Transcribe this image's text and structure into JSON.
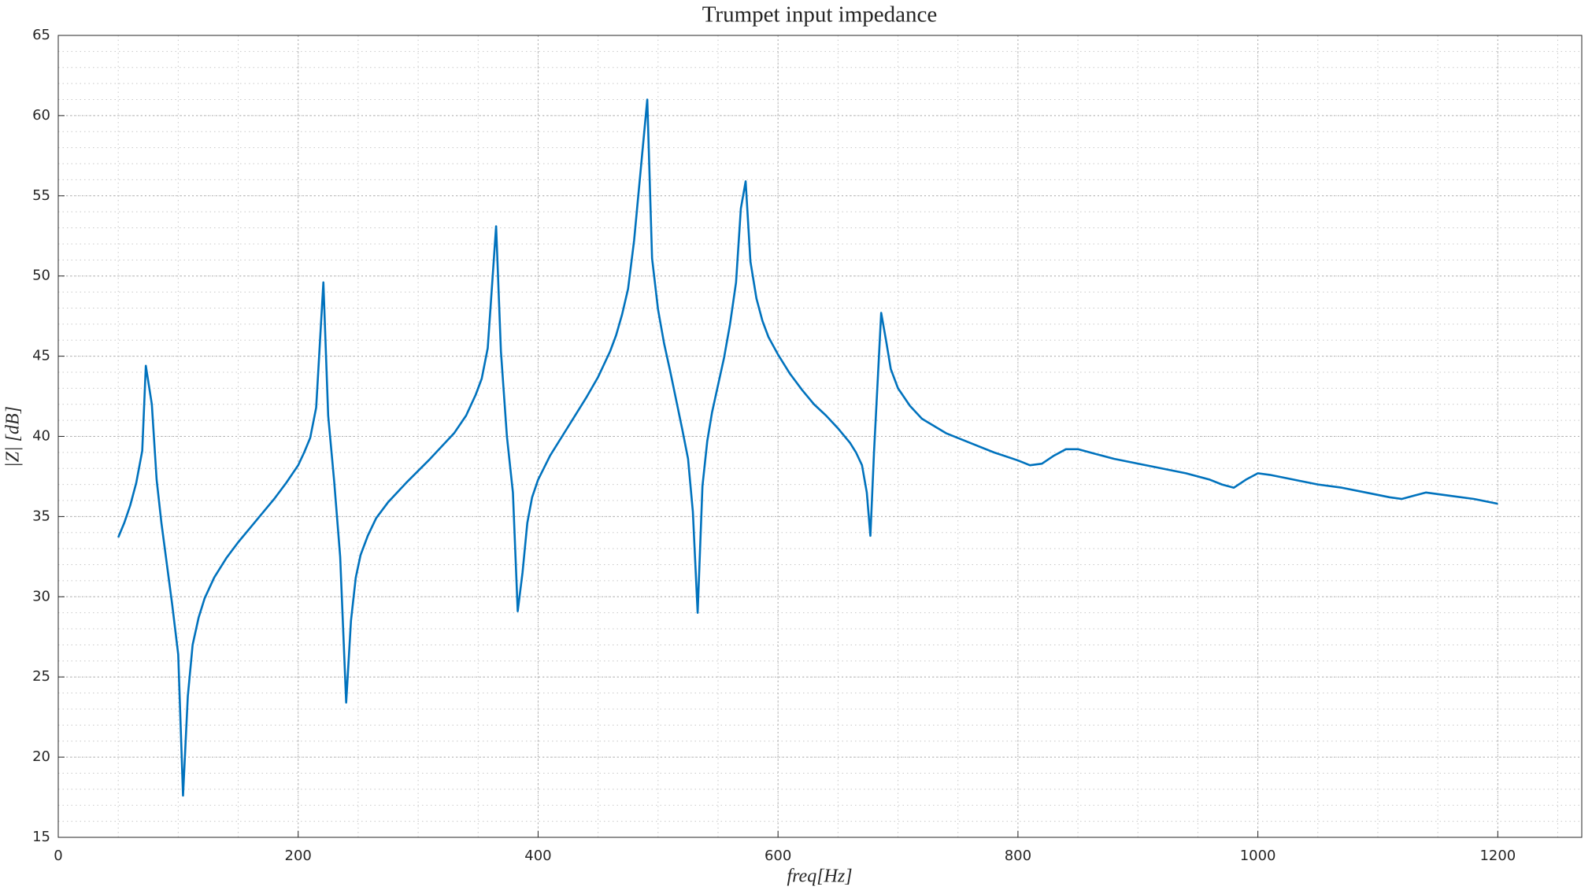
{
  "chart_data": {
    "type": "line",
    "title": "Trumpet input impedance",
    "xlabel": "freq[Hz]",
    "ylabel": "|Z| [dB]",
    "x": [
      50,
      55,
      60,
      65,
      70,
      73,
      78,
      82,
      86,
      95,
      100,
      104,
      108,
      112,
      117,
      122,
      130,
      140,
      150,
      160,
      170,
      180,
      190,
      200,
      205,
      210,
      215,
      221,
      225,
      230,
      235,
      240,
      244,
      248,
      252,
      258,
      265,
      275,
      290,
      310,
      330,
      340,
      348,
      353,
      358,
      365,
      369,
      374,
      379,
      383,
      387,
      391,
      395,
      400,
      410,
      420,
      430,
      440,
      450,
      460,
      465,
      470,
      475,
      480,
      491,
      495,
      500,
      505,
      510,
      515,
      520,
      525,
      529,
      533,
      537,
      541,
      545,
      550,
      555,
      560,
      565,
      569,
      573,
      577,
      582,
      587,
      592,
      600,
      610,
      620,
      630,
      640,
      650,
      660,
      665,
      670,
      674,
      677,
      680,
      686,
      690,
      694,
      700,
      710,
      720,
      740,
      760,
      780,
      800,
      810,
      820,
      830,
      840,
      850,
      860,
      880,
      900,
      920,
      940,
      960,
      970,
      980,
      990,
      1000,
      1010,
      1030,
      1050,
      1070,
      1090,
      1110,
      1120,
      1130,
      1140,
      1160,
      1180,
      1200
    ],
    "values": [
      33.7,
      34.6,
      35.7,
      37.1,
      39.1,
      44.4,
      42.0,
      37.3,
      34.6,
      29.5,
      26.4,
      17.6,
      23.8,
      27.0,
      28.7,
      29.9,
      31.2,
      32.4,
      33.4,
      34.3,
      35.2,
      36.1,
      37.1,
      38.2,
      39.0,
      39.9,
      41.8,
      49.6,
      41.3,
      37.2,
      32.5,
      23.4,
      28.5,
      31.2,
      32.6,
      33.8,
      34.9,
      35.9,
      37.1,
      38.6,
      40.2,
      41.3,
      42.6,
      43.6,
      45.5,
      53.1,
      45.3,
      40.0,
      36.5,
      29.1,
      31.5,
      34.6,
      36.2,
      37.3,
      38.8,
      40.0,
      41.2,
      42.4,
      43.7,
      45.3,
      46.3,
      47.6,
      49.2,
      52.2,
      61.0,
      51.1,
      47.9,
      45.8,
      44.1,
      42.3,
      40.5,
      38.6,
      35.3,
      29.0,
      36.9,
      39.7,
      41.5,
      43.2,
      44.9,
      47.0,
      49.6,
      54.2,
      55.9,
      50.9,
      48.6,
      47.2,
      46.2,
      45.1,
      43.9,
      42.9,
      42.0,
      41.3,
      40.5,
      39.6,
      39.0,
      38.2,
      36.5,
      33.8,
      39.0,
      47.7,
      46.0,
      44.2,
      43.0,
      41.9,
      41.1,
      40.2,
      39.6,
      39.0,
      38.5,
      38.2,
      38.3,
      38.8,
      39.2,
      39.2,
      39.0,
      38.6,
      38.3,
      38.0,
      37.7,
      37.3,
      37.0,
      36.8,
      37.3,
      37.7,
      37.6,
      37.3,
      37.0,
      36.8,
      36.5,
      36.2,
      36.1,
      36.3,
      36.5,
      36.3,
      36.1,
      35.8
    ],
    "color": "#0072bd",
    "xlim": [
      0,
      1270
    ],
    "ylim": [
      15,
      65
    ],
    "xticks": [
      0,
      200,
      400,
      600,
      800,
      1000,
      1200
    ],
    "yticks": [
      15,
      20,
      25,
      30,
      35,
      40,
      45,
      50,
      55,
      60,
      65
    ],
    "grid": true,
    "minor_grid": true
  }
}
